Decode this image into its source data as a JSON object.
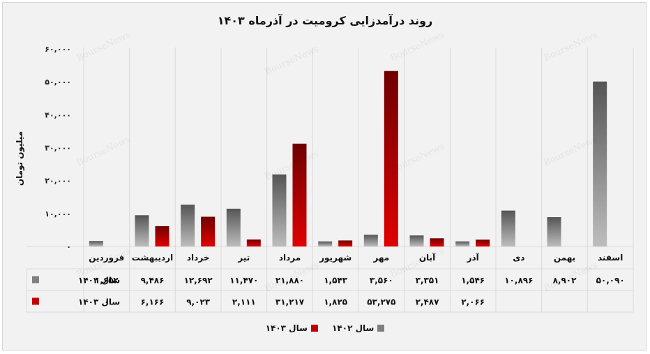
{
  "chart_data": {
    "type": "bar",
    "title": "روند درآمدزایی کرومیت در آذرماه ۱۴۰۳",
    "ylabel": "میلیون تومان",
    "ylim": [
      0,
      60000
    ],
    "yticks": [
      0,
      10000,
      20000,
      30000,
      40000,
      50000,
      60000
    ],
    "ytick_labels": [
      "۰",
      "۱۰,۰۰۰",
      "۲۰,۰۰۰",
      "۳۰,۰۰۰",
      "۴۰,۰۰۰",
      "۵۰,۰۰۰",
      "۶۰,۰۰۰"
    ],
    "categories": [
      "فروردین",
      "اردیبهشت",
      "خرداد",
      "تیر",
      "مرداد",
      "شهریور",
      "مهر",
      "آبان",
      "آذر",
      "دی",
      "بهمن",
      "اسفند"
    ],
    "series": [
      {
        "name": "سال ۱۴۰۲",
        "color": "#7f7f7f",
        "values": [
          1652,
          9486,
          12692,
          11470,
          21880,
          1543,
          3560,
          3351,
          1546,
          10896,
          8902,
          50090
        ],
        "labels": [
          "۱,۶۵۲",
          "۹,۴۸۶",
          "۱۲,۶۹۲",
          "۱۱,۴۷۰",
          "۲۱,۸۸۰",
          "۱,۵۴۳",
          "۳,۵۶۰",
          "۳,۳۵۱",
          "۱,۵۴۶",
          "۱۰,۸۹۶",
          "۸,۹۰۲",
          "۵۰,۰۹۰"
        ]
      },
      {
        "name": "سال ۱۴۰۳",
        "color": "#c00000",
        "values": [
          0,
          6166,
          9023,
          2111,
          31217,
          1825,
          53275,
          2487,
          2066,
          null,
          null,
          null
        ],
        "labels": [
          "۰",
          "۶,۱۶۶",
          "۹,۰۲۳",
          "۲,۱۱۱",
          "۳۱,۲۱۷",
          "۱,۸۲۵",
          "۵۳,۲۷۵",
          "۲,۴۸۷",
          "۲,۰۶۶",
          "",
          "",
          ""
        ]
      }
    ],
    "grid": true,
    "legend": "bottom",
    "watermark": "BourseNews"
  }
}
